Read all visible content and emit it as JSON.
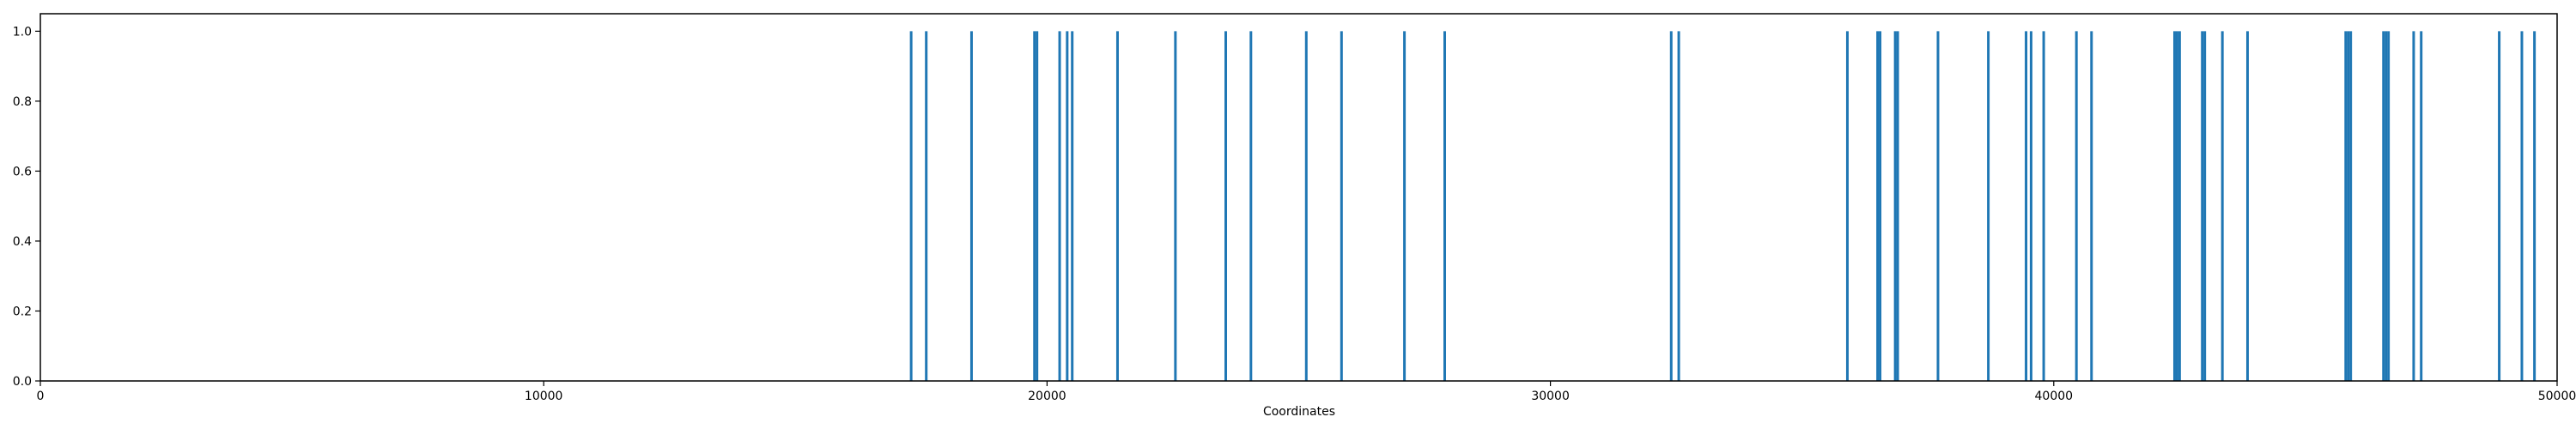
{
  "chart_data": {
    "type": "bar",
    "xlabel": "Coordinates",
    "ylabel": "",
    "title": "",
    "xlim": [
      0,
      50000
    ],
    "ylim": [
      0,
      1.05
    ],
    "grid": false,
    "x_ticks": [
      0,
      10000,
      20000,
      30000,
      40000,
      50000
    ],
    "y_ticks": [
      0.0,
      0.2,
      0.4,
      0.6,
      0.8,
      1.0
    ],
    "x_tick_labels": [
      "0",
      "10000",
      "20000",
      "30000",
      "40000",
      "50000"
    ],
    "y_tick_labels": [
      "0.0",
      "0.2",
      "0.4",
      "0.6",
      "0.8",
      "1.0"
    ],
    "bar_color": "#1f77b4",
    "x": [
      17300,
      17600,
      18500,
      19750,
      19800,
      20250,
      20400,
      20500,
      21400,
      22550,
      23550,
      24050,
      25150,
      25850,
      27100,
      27900,
      32400,
      32550,
      35900,
      36500,
      36550,
      36850,
      36900,
      37700,
      38700,
      39450,
      39550,
      39800,
      40450,
      40750,
      42400,
      42450,
      42500,
      42950,
      43000,
      43350,
      43850,
      45800,
      45850,
      45900,
      46550,
      46600,
      46650,
      47150,
      47300,
      48850,
      49300,
      49550
    ],
    "values": [
      1,
      1,
      1,
      1,
      1,
      1,
      1,
      1,
      1,
      1,
      1,
      1,
      1,
      1,
      1,
      1,
      1,
      1,
      1,
      1,
      1,
      1,
      1,
      1,
      1,
      1,
      1,
      1,
      1,
      1,
      1,
      1,
      1,
      1,
      1,
      1,
      1,
      1,
      1,
      1,
      1,
      1,
      1,
      1,
      1,
      1,
      1,
      1
    ]
  }
}
